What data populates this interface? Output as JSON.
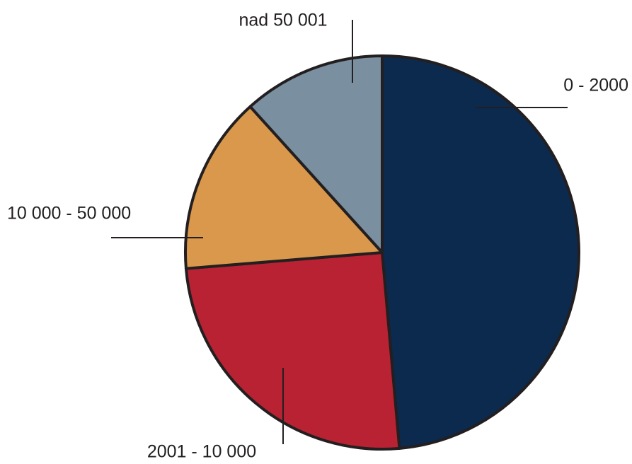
{
  "chart_data": {
    "type": "pie",
    "categories": [
      "0 - 2000",
      "2001 - 10 000",
      "10 000 - 50 000",
      "nad 50 001"
    ],
    "values": [
      48.6,
      25.1,
      14.6,
      11.7
    ],
    "colors": [
      "#0b2a4e",
      "#b82233",
      "#d9984b",
      "#7a8fa0"
    ]
  }
}
